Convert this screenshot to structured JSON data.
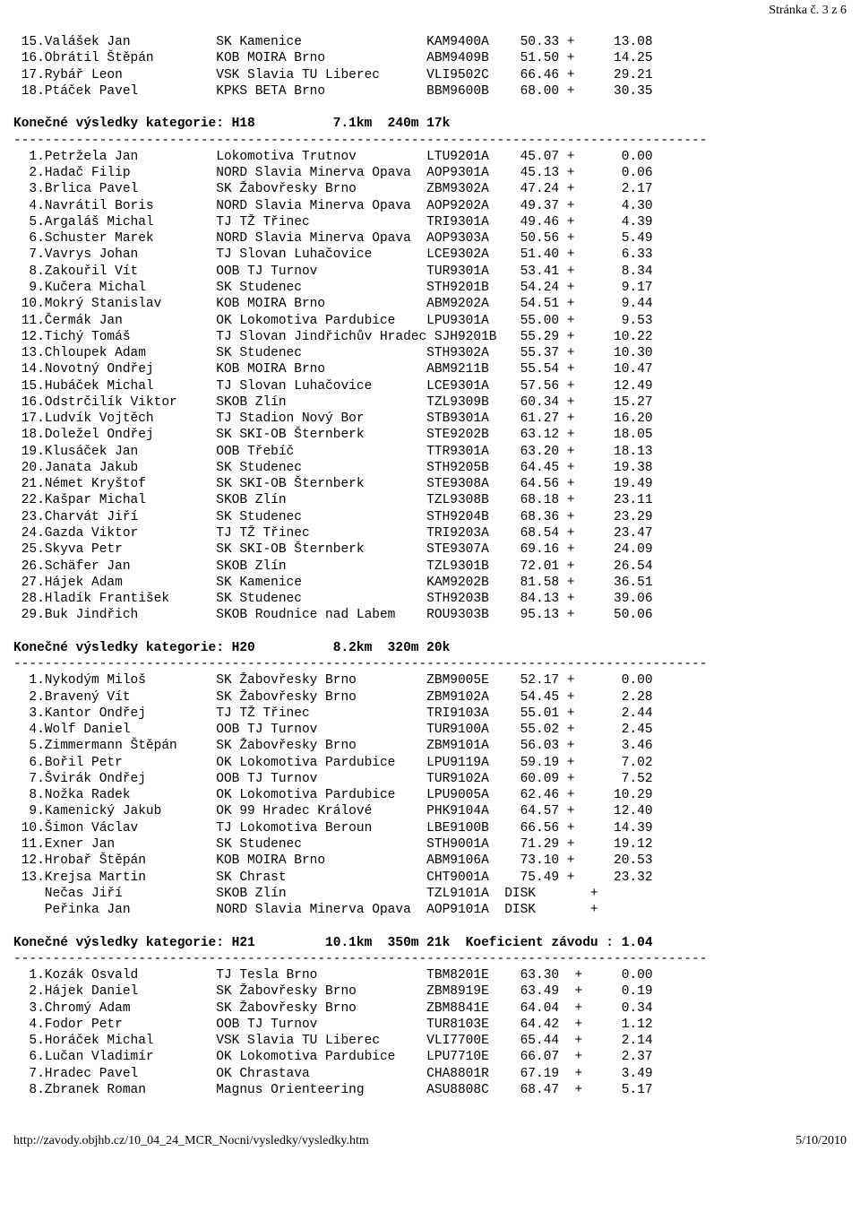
{
  "page_number": "Stránka č. 3 z 6",
  "footer_url": "http://zavody.objhb.cz/10_04_24_MCR_Nocni/vysledky/vysledky.htm",
  "footer_date": "5/10/2010",
  "top_results": [
    " 15.Valášek Jan           SK Kamenice                KAM9400A    50.33 +     13.08",
    " 16.Obrátil Štěpán        KOB MOIRA Brno             ABM9409B    51.50 +     14.25",
    " 17.Rybář Leon            VSK Slavia TU Liberec      VLI9502C    66.46 +     29.21",
    " 18.Ptáček Pavel          KPKS BETA Brno             BBM9600B    68.00 +     30.35"
  ],
  "h18_header": "Konečné výsledky kategorie: H18          7.1km  240m 17k",
  "h18_sep": "-----------------------------------------------------------------------------------------",
  "h18_results": [
    "  1.Petržela Jan          Lokomotiva Trutnov         LTU9201A    45.07 +      0.00",
    "  2.Hadač Filip           NORD Slavia Minerva Opava  AOP9301A    45.13 +      0.06",
    "  3.Brlica Pavel          SK Žabovřesky Brno         ZBM9302A    47.24 +      2.17",
    "  4.Navrátil Boris        NORD Slavia Minerva Opava  AOP9202A    49.37 +      4.30",
    "  5.Argaláš Michal        TJ TŽ Třinec               TRI9301A    49.46 +      4.39",
    "  6.Schuster Marek        NORD Slavia Minerva Opava  AOP9303A    50.56 +      5.49",
    "  7.Vavrys Johan          TJ Slovan Luhačovice       LCE9302A    51.40 +      6.33",
    "  8.Zakouřil Vít          OOB TJ Turnov              TUR9301A    53.41 +      8.34",
    "  9.Kučera Michal         SK Studenec                STH9201B    54.24 +      9.17",
    " 10.Mokrý Stanislav       KOB MOIRA Brno             ABM9202A    54.51 +      9.44",
    " 11.Čermák Jan            OK Lokomotiva Pardubice    LPU9301A    55.00 +      9.53",
    " 12.Tichý Tomáš           TJ Slovan Jindřichův Hradec SJH9201B   55.29 +     10.22",
    " 13.Chloupek Adam         SK Studenec                STH9302A    55.37 +     10.30",
    " 14.Novotný Ondřej        KOB MOIRA Brno             ABM9211B    55.54 +     10.47",
    " 15.Hubáček Michal        TJ Slovan Luhačovice       LCE9301A    57.56 +     12.49",
    " 16.Odstrčilík Viktor     SKOB Zlín                  TZL9309B    60.34 +     15.27",
    " 17.Ludvík Vojtěch        TJ Stadion Nový Bor        STB9301A    61.27 +     16.20",
    " 18.Doležel Ondřej        SK SKI-OB Šternberk        STE9202B    63.12 +     18.05",
    " 19.Klusáček Jan          OOB Třebíč                 TTR9301A    63.20 +     18.13",
    " 20.Janata Jakub          SK Studenec                STH9205B    64.45 +     19.38",
    " 21.Német Kryštof         SK SKI-OB Šternberk        STE9308A    64.56 +     19.49",
    " 22.Kašpar Michal         SKOB Zlín                  TZL9308B    68.18 +     23.11",
    " 23.Charvát Jiří          SK Studenec                STH9204B    68.36 +     23.29",
    " 24.Gazda Viktor          TJ TŽ Třinec               TRI9203A    68.54 +     23.47",
    " 25.Skyva Petr            SK SKI-OB Šternberk        STE9307A    69.16 +     24.09",
    " 26.Schäfer Jan           SKOB Zlín                  TZL9301B    72.01 +     26.54",
    " 27.Hájek Adam            SK Kamenice                KAM9202B    81.58 +     36.51",
    " 28.Hladík František      SK Studenec                STH9203B    84.13 +     39.06",
    " 29.Buk Jindřich          SKOB Roudnice nad Labem    ROU9303B    95.13 +     50.06"
  ],
  "h20_header": "Konečné výsledky kategorie: H20          8.2km  320m 20k",
  "h20_sep": "-----------------------------------------------------------------------------------------",
  "h20_results": [
    "  1.Nykodým Miloš         SK Žabovřesky Brno         ZBM9005E    52.17 +      0.00",
    "  2.Bravený Vít           SK Žabovřesky Brno         ZBM9102A    54.45 +      2.28",
    "  3.Kantor Ondřej         TJ TŽ Třinec               TRI9103A    55.01 +      2.44",
    "  4.Wolf Daniel           OOB TJ Turnov              TUR9100A    55.02 +      2.45",
    "  5.Zimmermann Štěpán     SK Žabovřesky Brno         ZBM9101A    56.03 +      3.46",
    "  6.Bořil Petr            OK Lokomotiva Pardubice    LPU9119A    59.19 +      7.02",
    "  7.Švirák Ondřej         OOB TJ Turnov              TUR9102A    60.09 +      7.52",
    "  8.Nožka Radek           OK Lokomotiva Pardubice    LPU9005A    62.46 +     10.29",
    "  9.Kamenický Jakub       OK 99 Hradec Králové       PHK9104A    64.57 +     12.40",
    " 10.Šimon Václav          TJ Lokomotiva Beroun       LBE9100B    66.56 +     14.39",
    " 11.Exner Jan             SK Studenec                STH9001A    71.29 +     19.12",
    " 12.Hrobař Štěpán         KOB MOIRA Brno             ABM9106A    73.10 +     20.53",
    " 13.Krejsa Martin         SK Chrast                  CHT9001A    75.49 +     23.32",
    "    Nečas Jiří            SKOB Zlín                  TZL9101A  DISK       +",
    "    Peřinka Jan           NORD Slavia Minerva Opava  AOP9101A  DISK       +"
  ],
  "h21_header": "Konečné výsledky kategorie: H21         10.1km  350m 21k  Koeficient závodu : 1.04",
  "h21_sep": "-----------------------------------------------------------------------------------------",
  "h21_results": [
    "  1.Kozák Osvald          TJ Tesla Brno              TBM8201E    63.30  +     0.00",
    "  2.Hájek Daniel          SK Žabovřesky Brno         ZBM8919E    63.49  +     0.19",
    "  3.Chromý Adam           SK Žabovřesky Brno         ZBM8841E    64.04  +     0.34",
    "  4.Fodor Petr            OOB TJ Turnov              TUR8103E    64.42  +     1.12",
    "  5.Horáček Michal        VSK Slavia TU Liberec      VLI7700E    65.44  +     2.14",
    "  6.Lučan Vladimír        OK Lokomotiva Pardubice    LPU7710E    66.07  +     2.37",
    "  7.Hradec Pavel          OK Chrastava               CHA8801R    67.19  +     3.49",
    "  8.Zbranek Roman         Magnus Orienteering        ASU8808C    68.47  +     5.17"
  ]
}
